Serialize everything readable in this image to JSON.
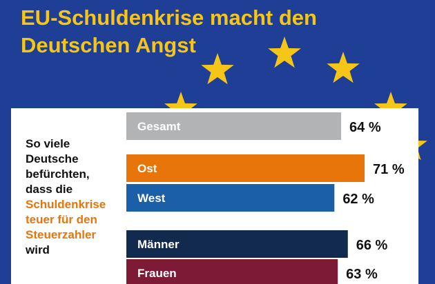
{
  "title_lines": [
    "EU-Schuldenkrise macht den",
    "Deutschen Angst"
  ],
  "description": {
    "lines": [
      "So viele",
      "Deutsche",
      "befürchten,",
      "dass die"
    ],
    "highlight_lines": [
      "Schuldenkrise",
      "teuer für den",
      "Steuerzahler"
    ],
    "tail": "wird"
  },
  "colors": {
    "background": "#1f3f97",
    "title": "#f5c518",
    "star": "#f5c518",
    "highlight": "#e8750a"
  },
  "chart_data": {
    "type": "bar",
    "orientation": "horizontal",
    "title": "",
    "xlabel": "",
    "ylabel": "",
    "unit": "%",
    "xlim": [
      0,
      100
    ],
    "grid": false,
    "categories": [
      "Gesamt",
      "Ost",
      "West",
      "Männer",
      "Frauen"
    ],
    "values": [
      64,
      71,
      62,
      66,
      63
    ],
    "value_labels": [
      "64 %",
      "71 %",
      "62 %",
      "66 %",
      "63 %"
    ],
    "colors": [
      "#b1b3b5",
      "#e8750a",
      "#1a5fa8",
      "#132a4f",
      "#7d1a35"
    ]
  }
}
